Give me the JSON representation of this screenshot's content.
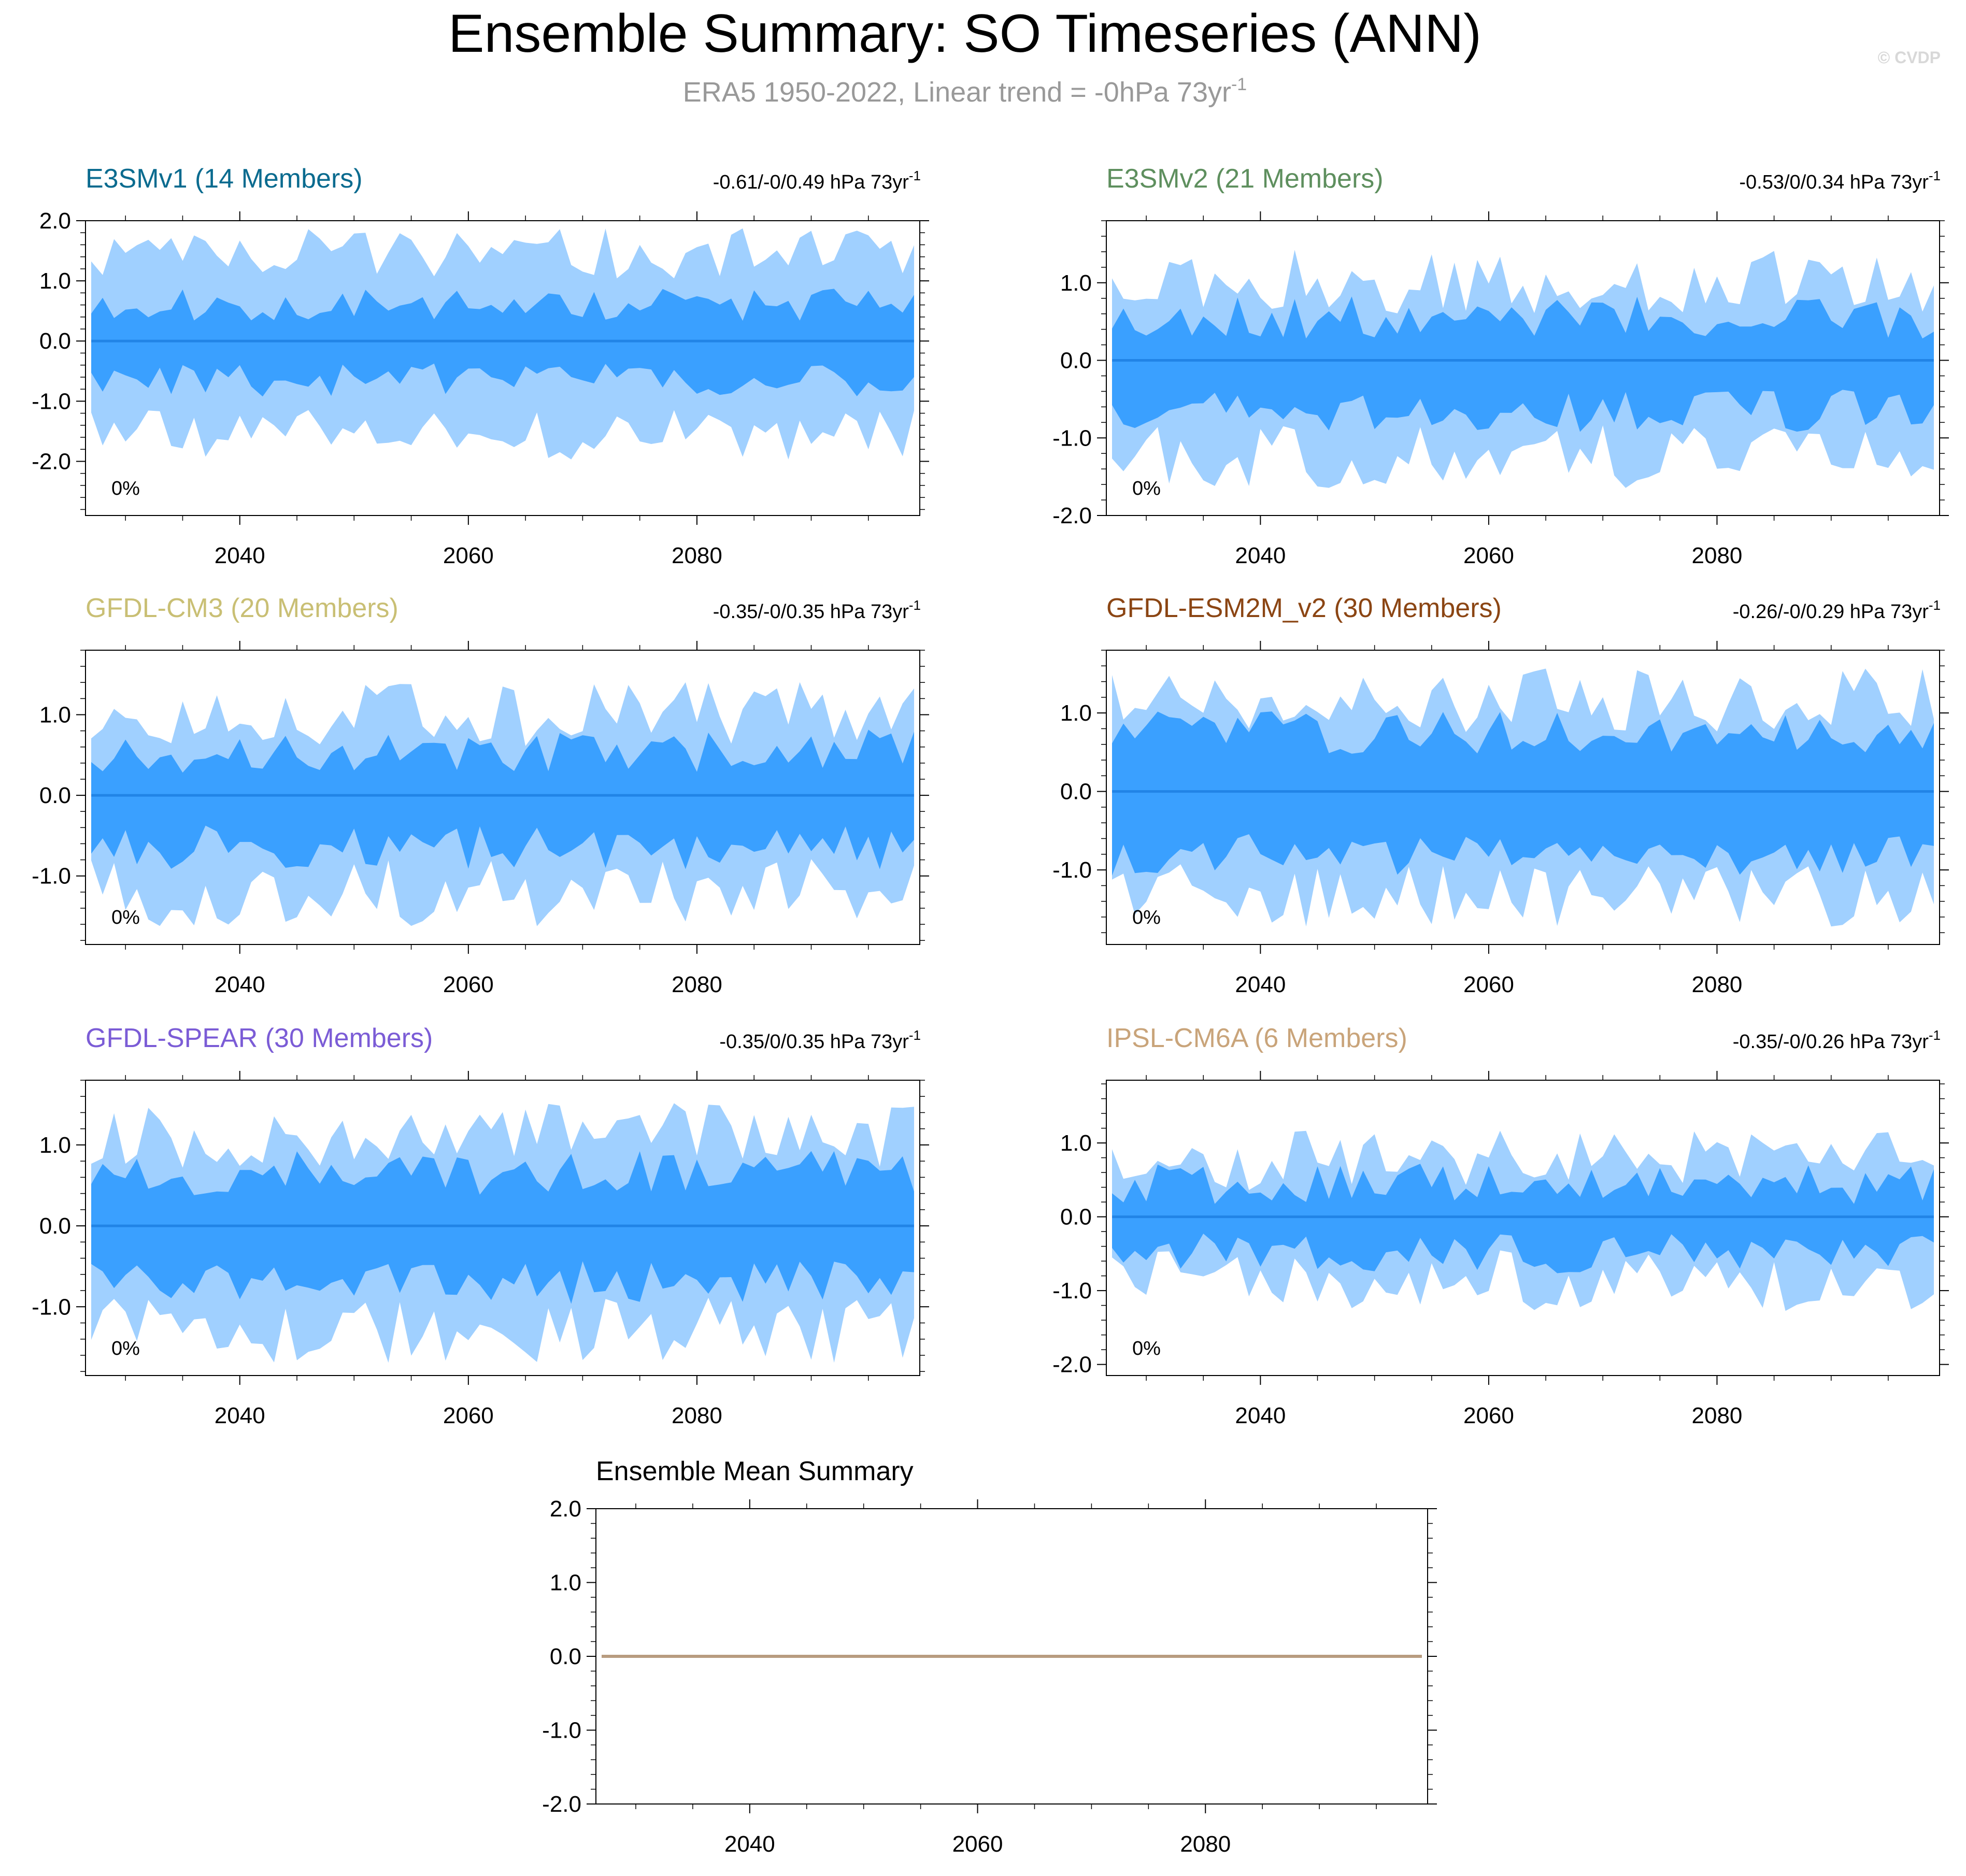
{
  "header": {
    "title": "Ensemble Summary: SO Timeseries (ANN)",
    "subtitle_prefix": "ERA5 1950-2022, Linear trend = -0hPa 73yr",
    "subtitle_sup": "-1",
    "credit": "© CVDP"
  },
  "colors": {
    "outer_band": "#a0d0ff",
    "inner_band": "#3aa0ff",
    "mean_line": "#2184e6",
    "ensemble_mean_line": "#b89c80"
  },
  "chart_data": [
    {
      "type": "area",
      "name": "E3SMv1 (14 Members)",
      "title_color": "#0a6b8f",
      "trend_text": "-0.61/-0/0.49 hPa 73yr",
      "trend_sup": "-1",
      "pct_label": "0%",
      "ylim": [
        -2.9,
        2.0
      ],
      "yticks": [
        2.0,
        1.0,
        0.0,
        -1.0,
        -2.0
      ],
      "ytick_labels": [
        "2.0",
        "1.0",
        "0.0",
        "-1.0",
        "-2.0"
      ],
      "xlim": [
        2026.5,
        2099.5
      ],
      "xticks": [
        2040,
        2060,
        2080
      ],
      "xtick_labels": [
        "2040",
        "2060",
        "2080"
      ],
      "years": [
        2027,
        2099
      ],
      "mean": 0.0,
      "outer_amp": [
        1.45,
        1.55
      ],
      "inner_amp": [
        0.6,
        0.65
      ],
      "seed": 11
    },
    {
      "type": "area",
      "name": "E3SMv2 (21 Members)",
      "title_color": "#5e8f5e",
      "trend_text": "-0.53/0/0.34 hPa 73yr",
      "trend_sup": "-1",
      "pct_label": "0%",
      "ylim": [
        -2.0,
        1.8
      ],
      "yticks": [
        1.0,
        0.0,
        -1.0,
        -2.0
      ],
      "ytick_labels": [
        "1.0",
        "0.0",
        "-1.0",
        "-2.0"
      ],
      "xlim": [
        2026.5,
        2099.5
      ],
      "xticks": [
        2040,
        2060,
        2080
      ],
      "xtick_labels": [
        "2040",
        "2060",
        "2080"
      ],
      "years": [
        2027,
        2099
      ],
      "mean": 0.0,
      "outer_amp": [
        1.0,
        1.25
      ],
      "inner_amp": [
        0.55,
        0.65
      ],
      "seed": 23
    },
    {
      "type": "area",
      "name": "GFDL-CM3 (20 Members)",
      "title_color": "#c9bf74",
      "trend_text": "-0.35/-0/0.35 hPa 73yr",
      "trend_sup": "-1",
      "pct_label": "0%",
      "ylim": [
        -1.85,
        1.8
      ],
      "yticks": [
        1.0,
        0.0,
        -1.0
      ],
      "ytick_labels": [
        "1.0",
        "0.0",
        "-1.0"
      ],
      "xlim": [
        2026.5,
        2099.5
      ],
      "xticks": [
        2040,
        2060,
        2080
      ],
      "xtick_labels": [
        "2040",
        "2060",
        "2080"
      ],
      "years": [
        2027,
        2099
      ],
      "mean": 0.0,
      "outer_amp": [
        1.0,
        1.2
      ],
      "inner_amp": [
        0.55,
        0.65
      ],
      "seed": 37
    },
    {
      "type": "area",
      "name": "GFDL-ESM2M_v2 (30 Members)",
      "title_color": "#8b4513",
      "trend_text": "-0.26/-0/0.29 hPa 73yr",
      "trend_sup": "-1",
      "pct_label": "0%",
      "ylim": [
        -1.95,
        1.8
      ],
      "yticks": [
        1.0,
        0.0,
        -1.0
      ],
      "ytick_labels": [
        "1.0",
        "0.0",
        "-1.0"
      ],
      "xlim": [
        2026.5,
        2099.5
      ],
      "xticks": [
        2040,
        2060,
        2080
      ],
      "xtick_labels": [
        "2040",
        "2060",
        "2080"
      ],
      "years": [
        2027,
        2099
      ],
      "mean": 0.0,
      "outer_amp": [
        1.15,
        1.3
      ],
      "inner_amp": [
        0.75,
        0.8
      ],
      "seed": 41
    },
    {
      "type": "area",
      "name": "GFDL-SPEAR (30 Members)",
      "title_color": "#7b5cd6",
      "trend_text": "-0.35/0/0.35 hPa 73yr",
      "trend_sup": "-1",
      "pct_label": "0%",
      "ylim": [
        -1.85,
        1.8
      ],
      "yticks": [
        1.0,
        0.0,
        -1.0
      ],
      "ytick_labels": [
        "1.0",
        "0.0",
        "-1.0"
      ],
      "xlim": [
        2026.5,
        2099.5
      ],
      "xticks": [
        2040,
        2060,
        2080
      ],
      "xtick_labels": [
        "2040",
        "2060",
        "2080"
      ],
      "years": [
        2027,
        2099
      ],
      "mean": 0.0,
      "outer_amp": [
        1.1,
        1.3
      ],
      "inner_amp": [
        0.65,
        0.7
      ],
      "seed": 53
    },
    {
      "type": "area",
      "name": "IPSL-CM6A (6 Members)",
      "title_color": "#c9a47a",
      "trend_text": "-0.35/-0/0.26 hPa 73yr",
      "trend_sup": "-1",
      "pct_label": "0%",
      "ylim": [
        -2.15,
        1.85
      ],
      "yticks": [
        1.0,
        0.0,
        -1.0,
        -2.0
      ],
      "ytick_labels": [
        "1.0",
        "0.0",
        "-1.0",
        "-2.0"
      ],
      "xlim": [
        2026.5,
        2099.5
      ],
      "xticks": [
        2040,
        2060,
        2080
      ],
      "xtick_labels": [
        "2040",
        "2060",
        "2080"
      ],
      "years": [
        2027,
        2099
      ],
      "mean": 0.0,
      "outer_amp": [
        0.75,
        0.85
      ],
      "inner_amp": [
        0.45,
        0.5
      ],
      "seed": 67
    },
    {
      "type": "line",
      "name": "Ensemble Mean Summary",
      "title_color": "#000000",
      "ylim": [
        -2.0,
        2.0
      ],
      "yticks": [
        2.0,
        1.0,
        0.0,
        -1.0,
        -2.0
      ],
      "ytick_labels": [
        "2.0",
        "1.0",
        "0.0",
        "-1.0",
        "-2.0"
      ],
      "xlim": [
        2026.5,
        2099.5
      ],
      "xticks": [
        2040,
        2060,
        2080
      ],
      "xtick_labels": [
        "2040",
        "2060",
        "2080"
      ],
      "series": [
        {
          "name": "ensemble mean",
          "x": [
            2027,
            2099
          ],
          "values": [
            0.0,
            0.0
          ]
        }
      ]
    }
  ]
}
